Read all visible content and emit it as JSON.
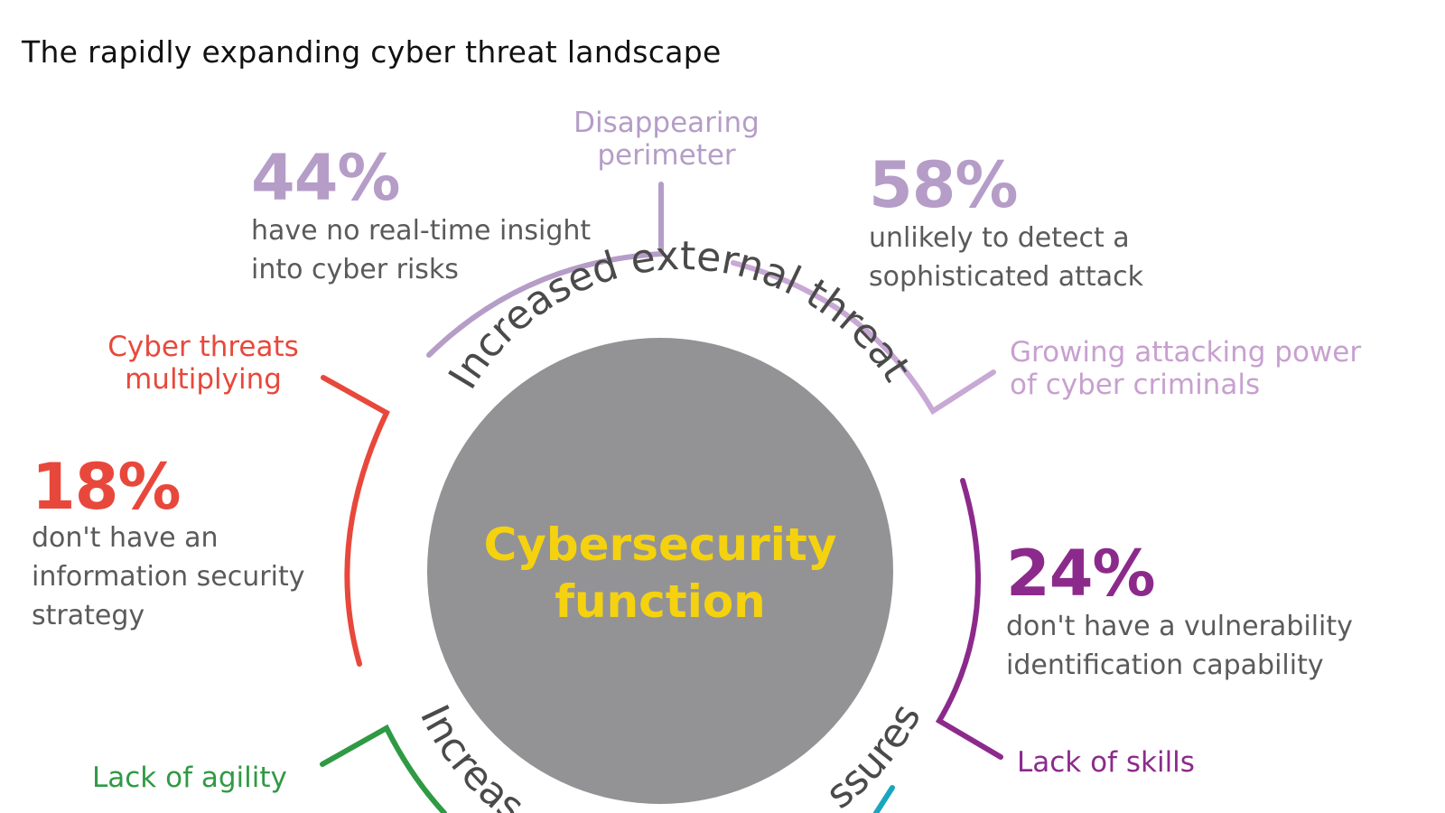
{
  "title": "The rapidly expanding cyber threat landscape",
  "center": {
    "line1": "Cybersecurity",
    "line2": "function"
  },
  "arcs": {
    "external": "Increased external threat",
    "bottom_left": "Increas",
    "bottom_right": "ssures"
  },
  "labels": {
    "disappearing": [
      "Disappearing",
      "perimeter"
    ],
    "growing": [
      "Growing attacking power",
      "of cyber criminals"
    ],
    "cyber_threats": [
      "Cyber threats",
      "multiplying"
    ],
    "lack_skills": "Lack of skills",
    "lack_agility": "Lack of agility"
  },
  "stats": {
    "s44": {
      "value": "44%",
      "text": [
        "have no real-time insight",
        "into cyber risks"
      ]
    },
    "s58": {
      "value": "58%",
      "text": [
        "unlikely to detect a",
        "sophisticated attack"
      ]
    },
    "s18": {
      "value": "18%",
      "text": [
        "don't have an",
        "information security",
        "strategy"
      ]
    },
    "s24": {
      "value": "24%",
      "text": [
        "don't have a vulnerability",
        "identification capability"
      ]
    }
  },
  "colors": {
    "lavender": "#b59dc8",
    "red": "#e8483b",
    "purple": "#8c2a8c",
    "green": "#2f9a44",
    "teal": "#1aa6bf",
    "circle": "#939396",
    "yellow": "#f5d20f",
    "arc_text": "#4a4a4a"
  }
}
